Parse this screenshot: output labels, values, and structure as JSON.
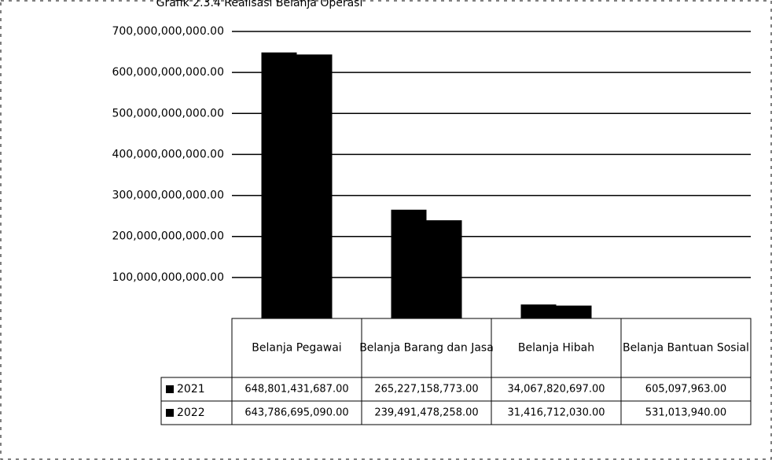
{
  "chart_data": {
    "type": "bar",
    "title": "Grafik 2.3.4 Realisasi Belanja Operasi",
    "categories": [
      "Belanja Pegawai",
      "Belanja Barang dan Jasa",
      "Belanja Hibah",
      "Belanja Bantuan Sosial"
    ],
    "series": [
      {
        "name": "2021",
        "color": "#000000",
        "values": [
          648801431687,
          265227158773,
          34067820697,
          605097963
        ],
        "value_labels": [
          "648,801,431,687.00",
          "265,227,158,773.00",
          "34,067,820,697.00",
          "605,097,963.00"
        ]
      },
      {
        "name": "2022",
        "color": "#000000",
        "values": [
          643786695090,
          239491478258,
          31416712030,
          531013940
        ],
        "value_labels": [
          "643,786,695,090.00",
          "239,491,478,258.00",
          "31,416,712,030.00",
          "531,013,940.00"
        ]
      }
    ],
    "ylim": [
      0,
      700000000000
    ],
    "yticks": [
      {
        "value": 100000000000,
        "label": "100,000,000,000.00"
      },
      {
        "value": 200000000000,
        "label": "200,000,000,000.00"
      },
      {
        "value": 300000000000,
        "label": "300,000,000,000.00"
      },
      {
        "value": 400000000000,
        "label": "400,000,000,000.00"
      },
      {
        "value": 500000000000,
        "label": "500,000,000,000.00"
      },
      {
        "value": 600000000000,
        "label": "600,000,000,000.00"
      },
      {
        "value": 700000000000,
        "label": "700,000,000,000.00"
      }
    ],
    "grid": true
  }
}
